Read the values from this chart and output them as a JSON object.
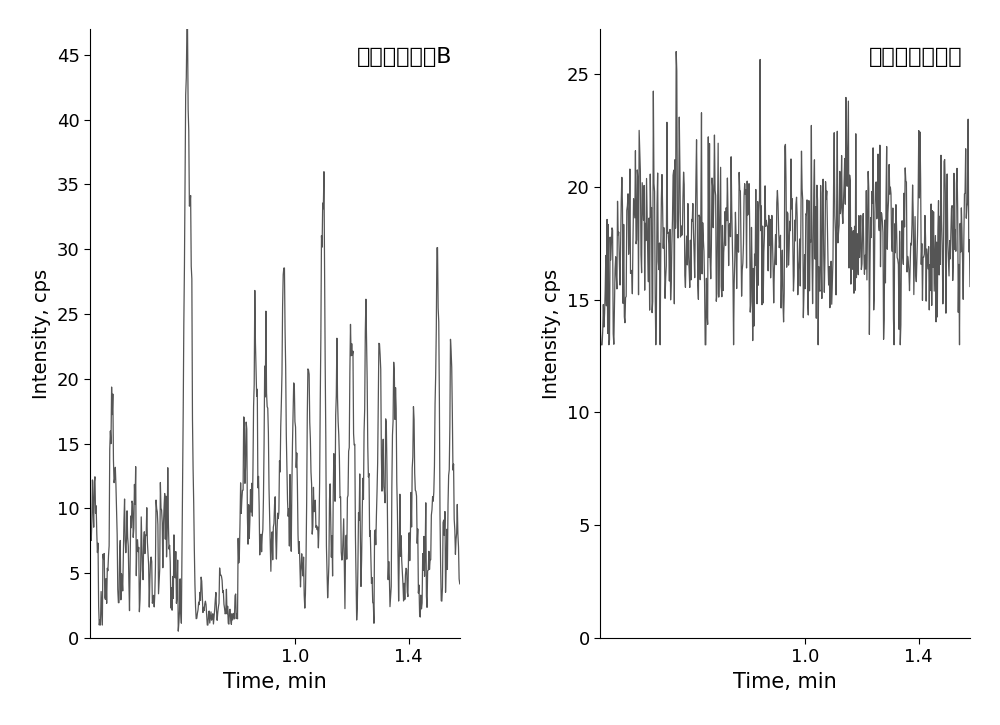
{
  "title_left": "半甘草异黄酮B",
  "title_right": "替硒唠（内标）",
  "xlabel": "Time, min",
  "ylabel": "Intensity, cps",
  "left_xlim": [
    0.28,
    1.58
  ],
  "right_xlim": [
    0.28,
    1.58
  ],
  "left_ylim": [
    0,
    47
  ],
  "right_ylim": [
    0,
    27
  ],
  "left_yticks": [
    0,
    5,
    10,
    15,
    20,
    25,
    30,
    35,
    40,
    45
  ],
  "right_yticks": [
    0,
    5,
    10,
    15,
    20,
    25
  ],
  "left_xtick_pos": [
    1.0,
    1.4
  ],
  "right_xtick_pos": [
    1.0,
    1.4
  ],
  "left_xticklabels": [
    "1.0",
    "1.4"
  ],
  "right_xticklabels": [
    "1.0",
    "1.4"
  ],
  "line_color": "#555555",
  "background_color": "#ffffff"
}
